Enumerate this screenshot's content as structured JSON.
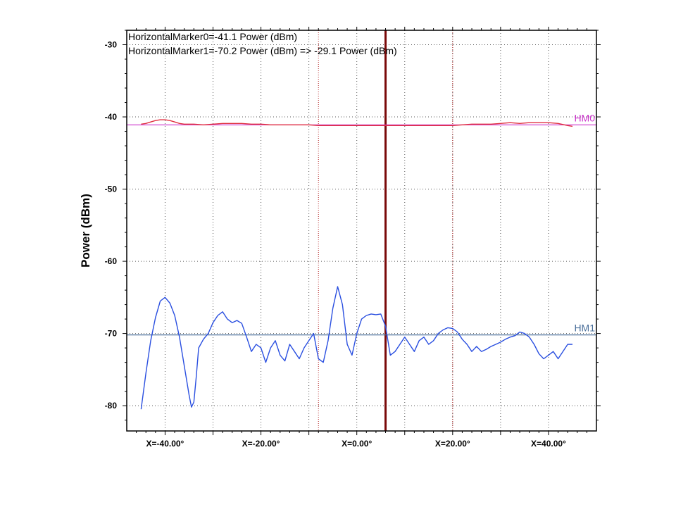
{
  "chart_data": {
    "type": "line",
    "ylabel": "Power (dBm)",
    "xlim": [
      -48,
      50
    ],
    "ylim": [
      -83.5,
      -28
    ],
    "x_ticks": [
      {
        "value": -40,
        "label": "X=-40.00°"
      },
      {
        "value": -20,
        "label": "X=-20.00°"
      },
      {
        "value": 0,
        "label": "X=0.00°"
      },
      {
        "value": 20,
        "label": "X=20.00°"
      },
      {
        "value": 40,
        "label": "X=40.00°"
      }
    ],
    "y_ticks": [
      {
        "value": -30,
        "label": "-30"
      },
      {
        "value": -40,
        "label": "-40"
      },
      {
        "value": -50,
        "label": "-50"
      },
      {
        "value": -60,
        "label": "-60"
      },
      {
        "value": -70,
        "label": "-70"
      },
      {
        "value": -80,
        "label": "-80"
      }
    ],
    "grid": true,
    "annotations": [
      "HorizontalMarker0=-41.1 Power (dBm)",
      "HorizontalMarker1=-70.2 Power (dBm) => -29.1 Power (dBm)"
    ],
    "horizontal_markers": [
      {
        "name": "HM0",
        "value": -41.1,
        "color": "#cc33cc"
      },
      {
        "name": "HM1",
        "value": -70.2,
        "color": "#4a6f9a"
      }
    ],
    "vertical_markers": [
      {
        "x": -8,
        "style": "dotted",
        "color": "#b22222"
      },
      {
        "x": 20,
        "style": "dotted",
        "color": "#b22222"
      },
      {
        "x": 6,
        "style": "solid",
        "color": "#7a0a0a"
      }
    ],
    "series": [
      {
        "color": "#e03040",
        "x": [
          -45,
          -44,
          -43,
          -42,
          -41,
          -40,
          -39,
          -38,
          -37,
          -36,
          -34,
          -32,
          -30,
          -28,
          -26,
          -24,
          -22,
          -20,
          -18,
          -16,
          -14,
          -12,
          -10,
          -8,
          -6,
          -4,
          -2,
          0,
          2,
          4,
          6,
          8,
          10,
          12,
          14,
          16,
          18,
          20,
          22,
          24,
          26,
          28,
          30,
          32,
          34,
          36,
          38,
          40,
          42,
          44,
          45
        ],
        "y": [
          -41.0,
          -40.9,
          -40.7,
          -40.5,
          -40.4,
          -40.4,
          -40.5,
          -40.7,
          -40.9,
          -41.0,
          -41.0,
          -41.1,
          -41.0,
          -40.9,
          -40.9,
          -40.9,
          -41.0,
          -41.0,
          -41.1,
          -41.1,
          -41.1,
          -41.1,
          -41.1,
          -41.2,
          -41.2,
          -41.2,
          -41.2,
          -41.2,
          -41.2,
          -41.2,
          -41.2,
          -41.2,
          -41.2,
          -41.2,
          -41.2,
          -41.2,
          -41.2,
          -41.2,
          -41.1,
          -41.0,
          -41.0,
          -41.0,
          -40.9,
          -40.8,
          -40.9,
          -40.8,
          -40.8,
          -40.8,
          -40.9,
          -41.2,
          -41.3
        ]
      },
      {
        "color": "#2a4fe0",
        "x": [
          -45,
          -44,
          -43,
          -42,
          -41,
          -40,
          -39,
          -38,
          -37,
          -36,
          -35,
          -34.5,
          -34,
          -33.5,
          -33,
          -32,
          -31,
          -30,
          -29,
          -28,
          -27,
          -26,
          -25,
          -24,
          -23,
          -22,
          -21,
          -20,
          -19,
          -18,
          -17,
          -16,
          -15,
          -14,
          -13,
          -12,
          -11,
          -10,
          -9,
          -8,
          -7,
          -6,
          -5,
          -4,
          -3,
          -2,
          -1,
          0,
          1,
          2,
          3,
          4,
          5,
          6,
          7,
          8,
          9,
          10,
          11,
          12,
          13,
          14,
          15,
          16,
          17,
          18,
          19,
          20,
          21,
          22,
          23,
          24,
          25,
          26,
          27,
          28,
          29,
          30,
          31,
          32,
          33,
          34,
          35,
          36,
          37,
          38,
          39,
          40,
          41,
          42,
          43,
          44,
          45
        ],
        "y": [
          -80.5,
          -75.5,
          -71.0,
          -67.8,
          -65.5,
          -65.0,
          -65.8,
          -67.5,
          -70.5,
          -74.5,
          -78.5,
          -80.2,
          -79.5,
          -76.0,
          -72.0,
          -70.8,
          -70.0,
          -68.5,
          -67.5,
          -67.0,
          -68.0,
          -68.5,
          -68.2,
          -68.6,
          -70.5,
          -72.5,
          -71.5,
          -72.0,
          -74.0,
          -72.0,
          -71.0,
          -73.0,
          -73.8,
          -71.5,
          -72.5,
          -73.5,
          -72.0,
          -71.0,
          -70.0,
          -73.5,
          -74.0,
          -71.0,
          -66.5,
          -63.5,
          -66.0,
          -71.5,
          -73.0,
          -70.0,
          -68.0,
          -67.5,
          -67.3,
          -67.4,
          -67.3,
          -69.0,
          -73.0,
          -72.5,
          -71.5,
          -70.5,
          -71.5,
          -72.5,
          -71.0,
          -70.5,
          -71.5,
          -71.0,
          -70.0,
          -69.5,
          -69.2,
          -69.3,
          -69.8,
          -70.8,
          -71.5,
          -72.5,
          -71.8,
          -72.5,
          -72.2,
          -71.8,
          -71.5,
          -71.2,
          -70.8,
          -70.5,
          -70.3,
          -69.8,
          -70.0,
          -70.5,
          -71.5,
          -72.8,
          -73.5,
          -73.0,
          -72.5,
          -73.5,
          -72.5,
          -71.5,
          -71.5
        ]
      }
    ]
  }
}
